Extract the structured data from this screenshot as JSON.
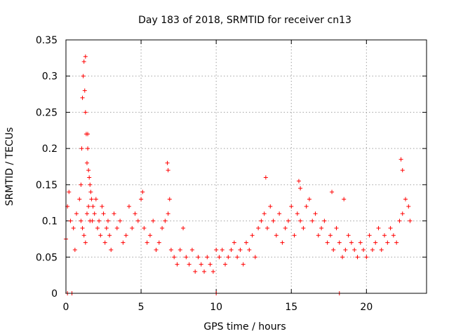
{
  "chart_data": {
    "type": "scatter",
    "title": "Day 183 of 2018, SRMTID for receiver cn13",
    "xlabel": "GPS time / hours",
    "ylabel": "SRMTID / TECUs",
    "xlim": [
      0,
      24
    ],
    "ylim": [
      0,
      0.35
    ],
    "xticks": [
      0,
      5,
      10,
      15,
      20
    ],
    "xtick_labels": [
      "0",
      "5",
      "10",
      "15",
      "20"
    ],
    "yticks": [
      0,
      0.05,
      0.1,
      0.15,
      0.2,
      0.25,
      0.3,
      0.35
    ],
    "ytick_labels": [
      "0",
      "0.05",
      "0.1",
      "0.15",
      "0.2",
      "0.25",
      "0.3",
      "0.35"
    ],
    "grid": true,
    "marker": "+",
    "color": "#ff0000",
    "series": [
      {
        "name": "SRMTID",
        "x": [
          0.0,
          0.1,
          0.3,
          0.2,
          0.5,
          0.6,
          0.7,
          0.9,
          1.0,
          1.0,
          1.05,
          1.1,
          1.15,
          1.2,
          1.25,
          1.3,
          1.35,
          1.4,
          1.45,
          1.5,
          1.55,
          1.6,
          1.65,
          1.7,
          1.1,
          1.2,
          1.3,
          1.4,
          1.5,
          1.6,
          1.75,
          1.8,
          1.9,
          2.0,
          2.1,
          2.2,
          2.3,
          2.4,
          2.5,
          2.6,
          2.7,
          2.8,
          2.9,
          3.0,
          3.2,
          3.4,
          3.6,
          3.8,
          4.0,
          4.2,
          4.4,
          4.6,
          4.8,
          5.0,
          5.1,
          5.2,
          5.4,
          5.6,
          5.8,
          6.0,
          6.2,
          6.4,
          6.6,
          6.8,
          6.9,
          7.0,
          7.2,
          7.4,
          7.6,
          7.8,
          8.0,
          8.2,
          8.4,
          8.6,
          8.8,
          9.0,
          9.2,
          9.4,
          9.6,
          9.8,
          10.0,
          10.2,
          10.4,
          10.6,
          10.8,
          11.0,
          11.2,
          11.4,
          11.6,
          11.8,
          12.0,
          12.2,
          12.4,
          12.6,
          12.8,
          13.0,
          13.2,
          13.4,
          13.6,
          13.8,
          14.0,
          14.2,
          14.4,
          14.6,
          14.8,
          15.0,
          15.2,
          15.4,
          15.6,
          15.8,
          16.0,
          16.2,
          16.4,
          16.6,
          16.8,
          17.0,
          17.2,
          17.4,
          17.6,
          17.8,
          18.0,
          18.2,
          18.4,
          18.6,
          18.8,
          19.0,
          19.2,
          19.4,
          19.6,
          19.8,
          20.0,
          20.2,
          20.4,
          20.6,
          20.8,
          21.0,
          21.2,
          21.4,
          21.6,
          21.8,
          22.0,
          22.2,
          22.4,
          22.6,
          22.8,
          22.9,
          1.3,
          1.45,
          6.75,
          6.8,
          22.3,
          22.4,
          15.5,
          15.6,
          13.3,
          17.7,
          18.5,
          0.1,
          0.4,
          10.0,
          18.2
        ],
        "y": [
          0.075,
          0.12,
          0.1,
          0.14,
          0.09,
          0.06,
          0.11,
          0.13,
          0.15,
          0.1,
          0.2,
          0.27,
          0.3,
          0.32,
          0.28,
          0.25,
          0.22,
          0.18,
          0.2,
          0.17,
          0.16,
          0.15,
          0.14,
          0.13,
          0.09,
          0.08,
          0.07,
          0.11,
          0.12,
          0.1,
          0.1,
          0.12,
          0.11,
          0.13,
          0.09,
          0.1,
          0.08,
          0.12,
          0.11,
          0.07,
          0.09,
          0.1,
          0.08,
          0.06,
          0.11,
          0.09,
          0.1,
          0.07,
          0.08,
          0.12,
          0.09,
          0.11,
          0.1,
          0.13,
          0.14,
          0.09,
          0.07,
          0.08,
          0.1,
          0.06,
          0.07,
          0.09,
          0.1,
          0.11,
          0.13,
          0.06,
          0.05,
          0.04,
          0.06,
          0.09,
          0.05,
          0.04,
          0.06,
          0.03,
          0.05,
          0.04,
          0.03,
          0.05,
          0.04,
          0.03,
          0.06,
          0.05,
          0.06,
          0.04,
          0.05,
          0.06,
          0.07,
          0.05,
          0.06,
          0.04,
          0.07,
          0.06,
          0.08,
          0.05,
          0.09,
          0.1,
          0.11,
          0.09,
          0.12,
          0.1,
          0.08,
          0.11,
          0.07,
          0.09,
          0.1,
          0.12,
          0.08,
          0.11,
          0.1,
          0.09,
          0.12,
          0.13,
          0.1,
          0.11,
          0.08,
          0.09,
          0.1,
          0.07,
          0.08,
          0.06,
          0.09,
          0.07,
          0.05,
          0.06,
          0.08,
          0.07,
          0.06,
          0.05,
          0.07,
          0.06,
          0.05,
          0.08,
          0.06,
          0.07,
          0.09,
          0.06,
          0.08,
          0.07,
          0.09,
          0.08,
          0.07,
          0.1,
          0.11,
          0.13,
          0.12,
          0.1,
          0.327,
          0.22,
          0.18,
          0.17,
          0.185,
          0.17,
          0.155,
          0.145,
          0.16,
          0.14,
          0.13,
          0.0,
          0.0,
          0.0,
          0.0
        ]
      }
    ]
  }
}
